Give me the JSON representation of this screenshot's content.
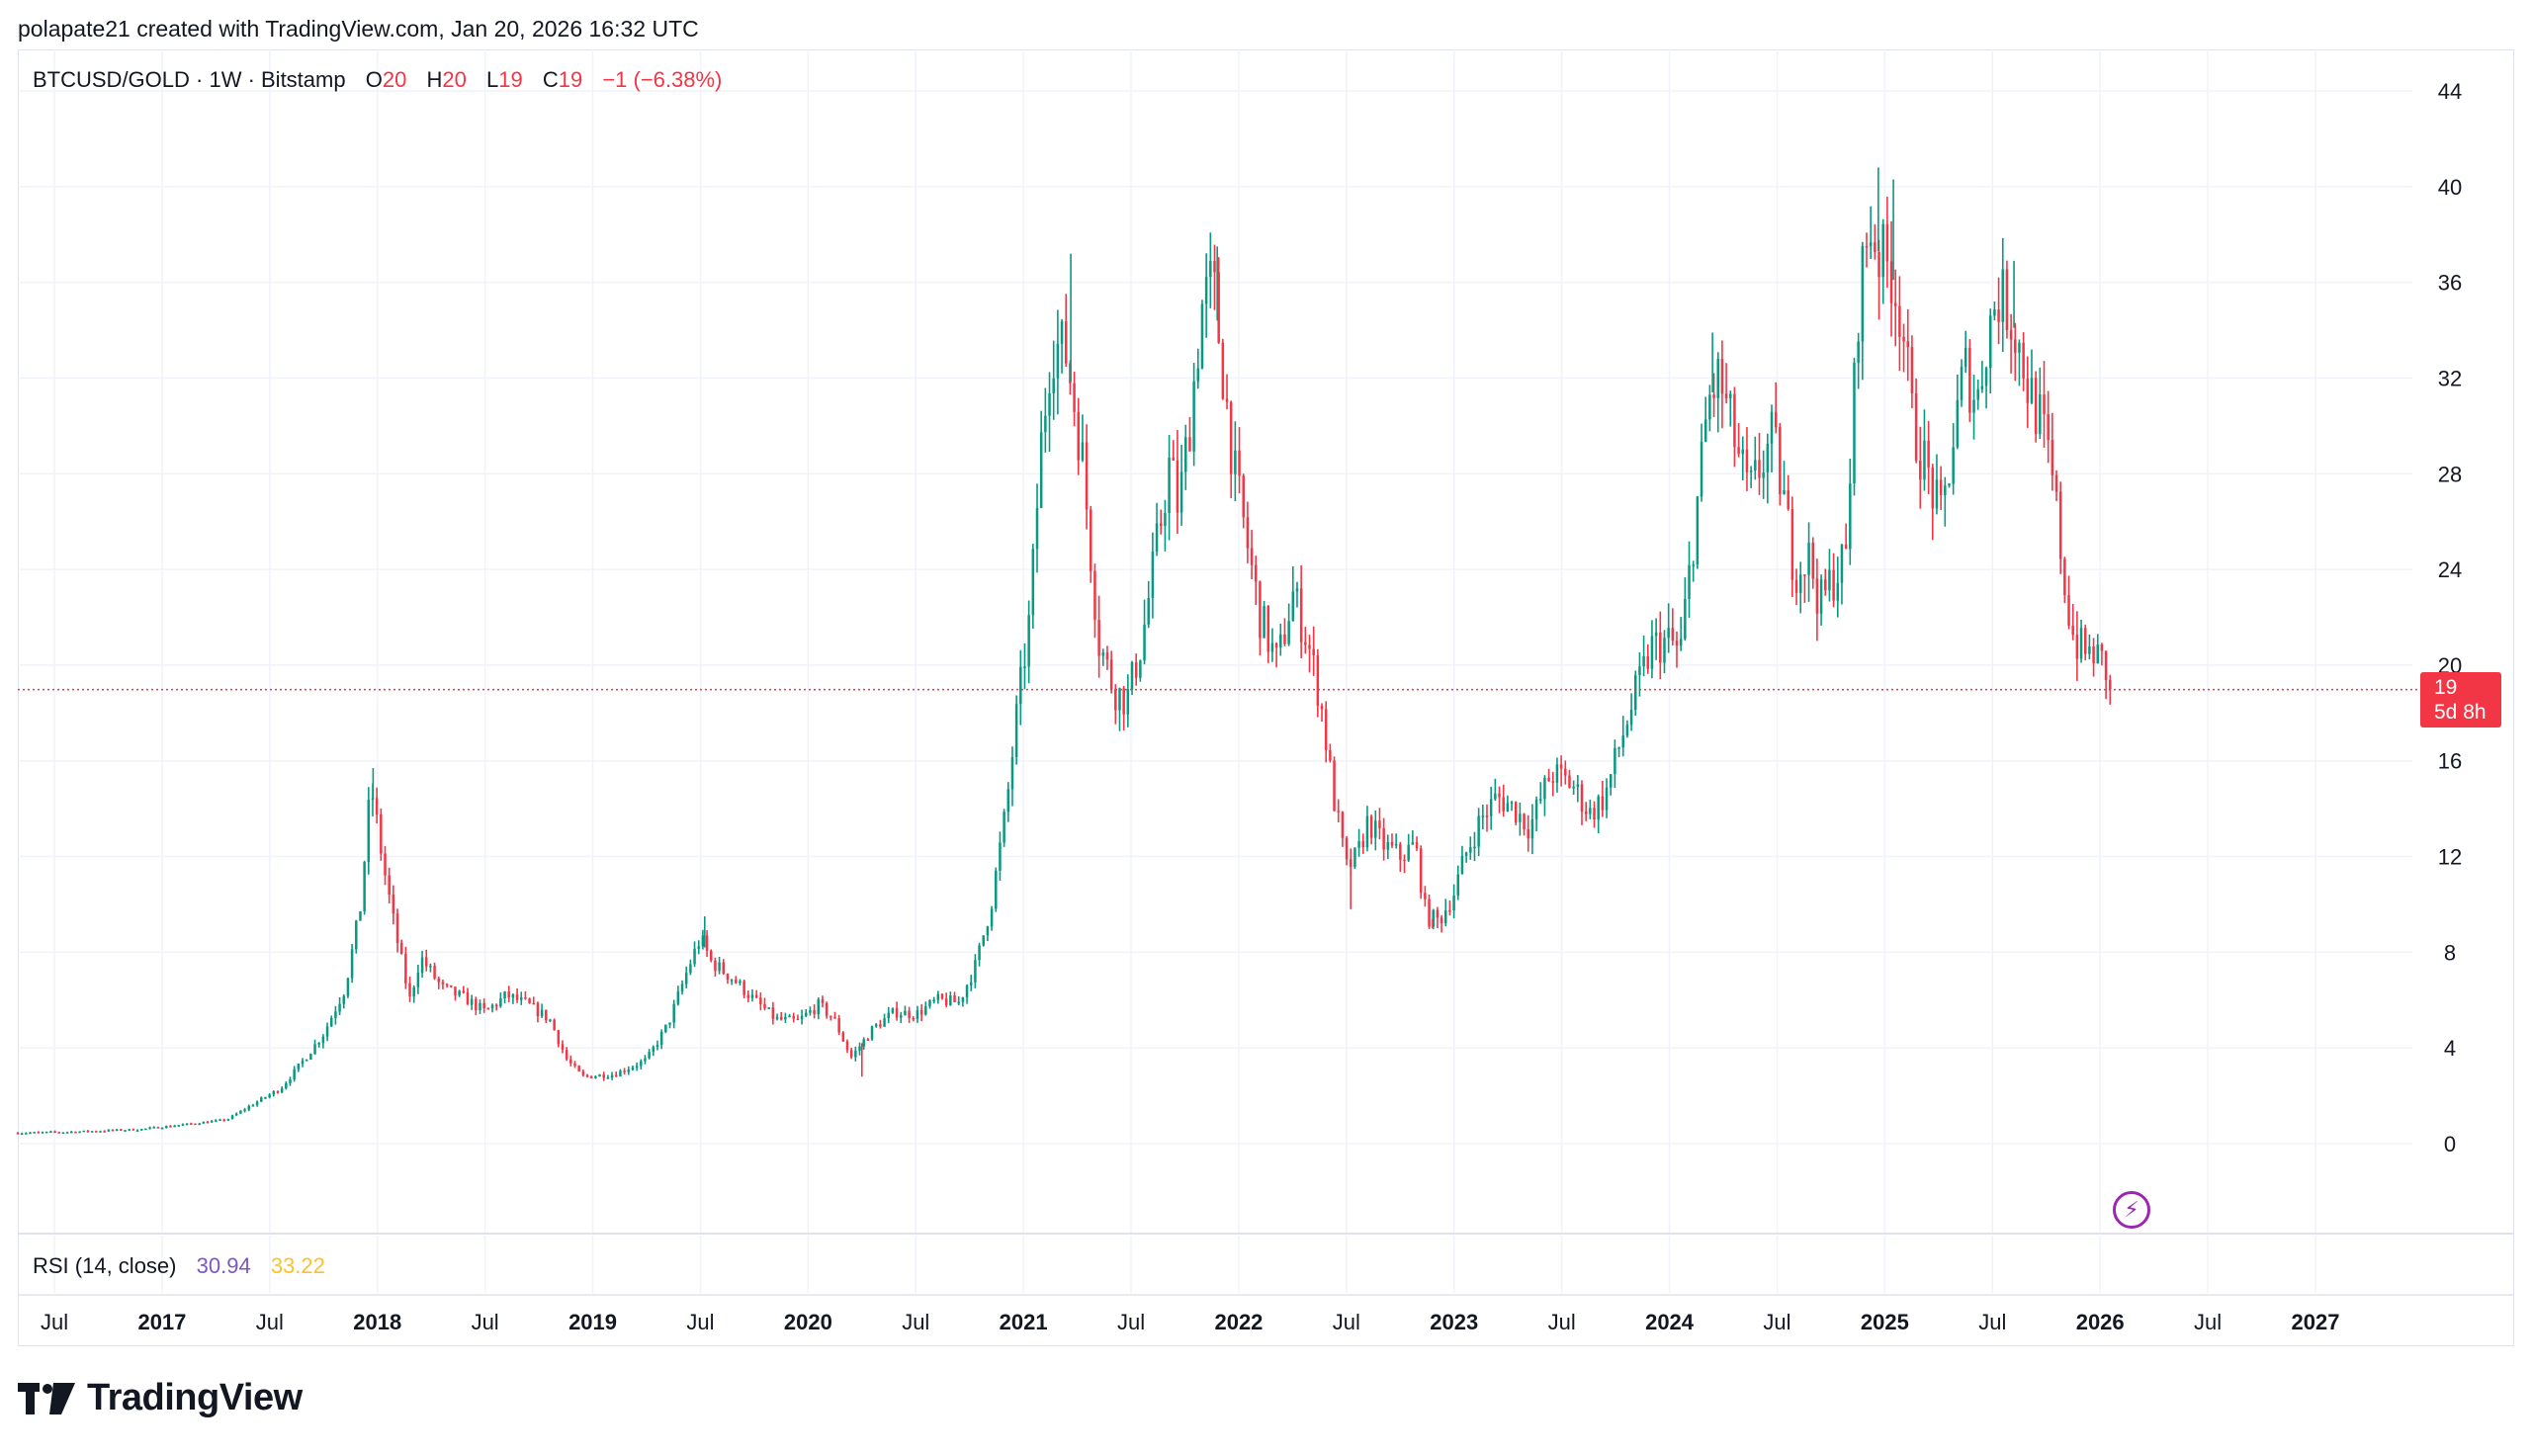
{
  "header": {
    "text": "polapate21 created with TradingView.com, Jan 20, 2026 16:32 UTC"
  },
  "legend": {
    "symbol": "BTCUSD/GOLD · 1W · Bitstamp",
    "o_label": "O",
    "o_value": "20",
    "h_label": "H",
    "h_value": "20",
    "l_label": "L",
    "l_value": "19",
    "c_label": "C",
    "c_value": "19",
    "change": "−1 (−6.38%)"
  },
  "rsi": {
    "label": "RSI (14, close)",
    "value1": "30.94",
    "value2": "33.22"
  },
  "price_tag": {
    "price": "19",
    "countdown": "5d 8h"
  },
  "branding": {
    "logo_text": "TradingView"
  },
  "colors": {
    "up": "#089981",
    "down": "#f23645",
    "grid": "#f0f3fa",
    "rsi_line": "#7e57c2",
    "rsi_ma": "#fbc02d"
  },
  "chart_data": {
    "type": "candlestick",
    "symbol": "BTCUSD/GOLD",
    "interval": "1W",
    "exchange": "Bitstamp",
    "ylim": [
      -4,
      46
    ],
    "y_ticks": [
      0,
      4,
      8,
      12,
      16,
      20,
      24,
      28,
      32,
      36,
      40,
      44
    ],
    "y_tick_labels": [
      "0",
      "4",
      "8",
      "12",
      "16",
      "20",
      "24",
      "28",
      "32",
      "36",
      "40",
      "44"
    ],
    "x_range": [
      2016.33,
      2027.45
    ],
    "x_ticks": [
      {
        "t": 2016.5,
        "label": "Jul",
        "bold": false
      },
      {
        "t": 2017.0,
        "label": "2017",
        "bold": true
      },
      {
        "t": 2017.5,
        "label": "Jul",
        "bold": false
      },
      {
        "t": 2018.0,
        "label": "2018",
        "bold": true
      },
      {
        "t": 2018.5,
        "label": "Jul",
        "bold": false
      },
      {
        "t": 2019.0,
        "label": "2019",
        "bold": true
      },
      {
        "t": 2019.5,
        "label": "Jul",
        "bold": false
      },
      {
        "t": 2020.0,
        "label": "2020",
        "bold": true
      },
      {
        "t": 2020.5,
        "label": "Jul",
        "bold": false
      },
      {
        "t": 2021.0,
        "label": "2021",
        "bold": true
      },
      {
        "t": 2021.5,
        "label": "Jul",
        "bold": false
      },
      {
        "t": 2022.0,
        "label": "2022",
        "bold": true
      },
      {
        "t": 2022.5,
        "label": "Jul",
        "bold": false
      },
      {
        "t": 2023.0,
        "label": "2023",
        "bold": true
      },
      {
        "t": 2023.5,
        "label": "Jul",
        "bold": false
      },
      {
        "t": 2024.0,
        "label": "2024",
        "bold": true
      },
      {
        "t": 2024.5,
        "label": "Jul",
        "bold": false
      },
      {
        "t": 2025.0,
        "label": "2025",
        "bold": true
      },
      {
        "t": 2025.5,
        "label": "Jul",
        "bold": false
      },
      {
        "t": 2026.0,
        "label": "2026",
        "bold": true
      },
      {
        "t": 2026.5,
        "label": "Jul",
        "bold": false
      },
      {
        "t": 2027.0,
        "label": "2027",
        "bold": true
      }
    ],
    "last_price": 19,
    "price_path": [
      [
        2016.33,
        0.45
      ],
      [
        2016.6,
        0.5
      ],
      [
        2016.9,
        0.6
      ],
      [
        2017.1,
        0.8
      ],
      [
        2017.3,
        1.0
      ],
      [
        2017.45,
        1.8
      ],
      [
        2017.55,
        2.3
      ],
      [
        2017.65,
        3.4
      ],
      [
        2017.75,
        4.6
      ],
      [
        2017.85,
        6.5
      ],
      [
        2017.92,
        9.8
      ],
      [
        2017.97,
        15.0
      ],
      [
        2018.03,
        11.5
      ],
      [
        2018.08,
        9.0
      ],
      [
        2018.15,
        6.0
      ],
      [
        2018.2,
        7.8
      ],
      [
        2018.3,
        6.5
      ],
      [
        2018.42,
        6.0
      ],
      [
        2018.5,
        5.5
      ],
      [
        2018.6,
        6.2
      ],
      [
        2018.7,
        5.8
      ],
      [
        2018.8,
        5.2
      ],
      [
        2018.88,
        3.5
      ],
      [
        2018.95,
        2.8
      ],
      [
        2019.1,
        2.9
      ],
      [
        2019.25,
        3.5
      ],
      [
        2019.35,
        5.0
      ],
      [
        2019.45,
        7.5
      ],
      [
        2019.5,
        8.6
      ],
      [
        2019.55,
        7.6
      ],
      [
        2019.65,
        6.9
      ],
      [
        2019.75,
        6.0
      ],
      [
        2019.85,
        5.2
      ],
      [
        2019.95,
        5.1
      ],
      [
        2020.05,
        5.8
      ],
      [
        2020.12,
        5.2
      ],
      [
        2020.2,
        3.6
      ],
      [
        2020.3,
        4.8
      ],
      [
        2020.4,
        5.5
      ],
      [
        2020.5,
        5.4
      ],
      [
        2020.6,
        6.0
      ],
      [
        2020.7,
        5.9
      ],
      [
        2020.78,
        7.5
      ],
      [
        2020.85,
        10.0
      ],
      [
        2020.92,
        14.0
      ],
      [
        2020.97,
        18.0
      ],
      [
        2021.03,
        22.0
      ],
      [
        2021.08,
        29.0
      ],
      [
        2021.13,
        33.5
      ],
      [
        2021.2,
        33.0
      ],
      [
        2021.27,
        29.0
      ],
      [
        2021.35,
        21.0
      ],
      [
        2021.42,
        19.0
      ],
      [
        2021.48,
        18.5
      ],
      [
        2021.55,
        21.0
      ],
      [
        2021.62,
        25.0
      ],
      [
        2021.68,
        28.5
      ],
      [
        2021.72,
        26.5
      ],
      [
        2021.77,
        30.0
      ],
      [
        2021.83,
        35.0
      ],
      [
        2021.88,
        36.0
      ],
      [
        2021.93,
        32.0
      ],
      [
        2021.98,
        28.0
      ],
      [
        2022.05,
        24.5
      ],
      [
        2022.1,
        22.0
      ],
      [
        2022.18,
        20.0
      ],
      [
        2022.25,
        23.0
      ],
      [
        2022.32,
        21.0
      ],
      [
        2022.38,
        18.5
      ],
      [
        2022.44,
        14.5
      ],
      [
        2022.5,
        11.5
      ],
      [
        2022.55,
        12.0
      ],
      [
        2022.6,
        13.5
      ],
      [
        2022.67,
        12.5
      ],
      [
        2022.75,
        12.0
      ],
      [
        2022.82,
        12.5
      ],
      [
        2022.87,
        9.5
      ],
      [
        2022.93,
        9.3
      ],
      [
        2023.0,
        10.5
      ],
      [
        2023.05,
        12.0
      ],
      [
        2023.12,
        13.5
      ],
      [
        2023.2,
        14.5
      ],
      [
        2023.28,
        14.0
      ],
      [
        2023.35,
        13.2
      ],
      [
        2023.45,
        15.5
      ],
      [
        2023.55,
        15.0
      ],
      [
        2023.63,
        13.8
      ],
      [
        2023.7,
        14.5
      ],
      [
        2023.78,
        17.0
      ],
      [
        2023.85,
        19.0
      ],
      [
        2023.92,
        20.8
      ],
      [
        2024.0,
        21.0
      ],
      [
        2024.05,
        20.5
      ],
      [
        2024.12,
        26.0
      ],
      [
        2024.18,
        31.0
      ],
      [
        2024.23,
        32.0
      ],
      [
        2024.3,
        29.5
      ],
      [
        2024.37,
        27.0
      ],
      [
        2024.43,
        28.5
      ],
      [
        2024.48,
        29.5
      ],
      [
        2024.53,
        27.0
      ],
      [
        2024.58,
        24.0
      ],
      [
        2024.65,
        24.5
      ],
      [
        2024.7,
        22.5
      ],
      [
        2024.75,
        23.5
      ],
      [
        2024.82,
        24.5
      ],
      [
        2024.85,
        30.0
      ],
      [
        2024.88,
        35.5
      ],
      [
        2024.93,
        38.5
      ],
      [
        2024.98,
        37.0
      ],
      [
        2025.03,
        36.5
      ],
      [
        2025.08,
        34.5
      ],
      [
        2025.13,
        30.0
      ],
      [
        2025.2,
        28.0
      ],
      [
        2025.26,
        26.0
      ],
      [
        2025.32,
        29.5
      ],
      [
        2025.37,
        32.5
      ],
      [
        2025.43,
        31.0
      ],
      [
        2025.47,
        33.5
      ],
      [
        2025.52,
        35.5
      ],
      [
        2025.57,
        35.0
      ],
      [
        2025.62,
        33.5
      ],
      [
        2025.67,
        31.5
      ],
      [
        2025.73,
        30.0
      ],
      [
        2025.79,
        27.0
      ],
      [
        2025.84,
        23.0
      ],
      [
        2025.88,
        21.0
      ],
      [
        2025.93,
        20.5
      ],
      [
        2025.97,
        20.5
      ],
      [
        2026.02,
        20.0
      ],
      [
        2026.05,
        19.0
      ]
    ],
    "peak_wicks": [
      {
        "t": 2017.98,
        "high": 15.7
      },
      {
        "t": 2019.52,
        "high": 9.5
      },
      {
        "t": 2020.25,
        "high": 2.8,
        "low": true
      },
      {
        "t": 2021.22,
        "high": 37.2
      },
      {
        "t": 2021.9,
        "high": 37.5
      },
      {
        "t": 2022.52,
        "high": 9.8,
        "low": true
      },
      {
        "t": 2022.9,
        "high": 9.0,
        "low": true
      },
      {
        "t": 2024.2,
        "high": 33.9
      },
      {
        "t": 2024.97,
        "high": 40.8
      },
      {
        "t": 2025.04,
        "high": 40.3
      },
      {
        "t": 2025.6,
        "high": 36.9
      }
    ]
  }
}
